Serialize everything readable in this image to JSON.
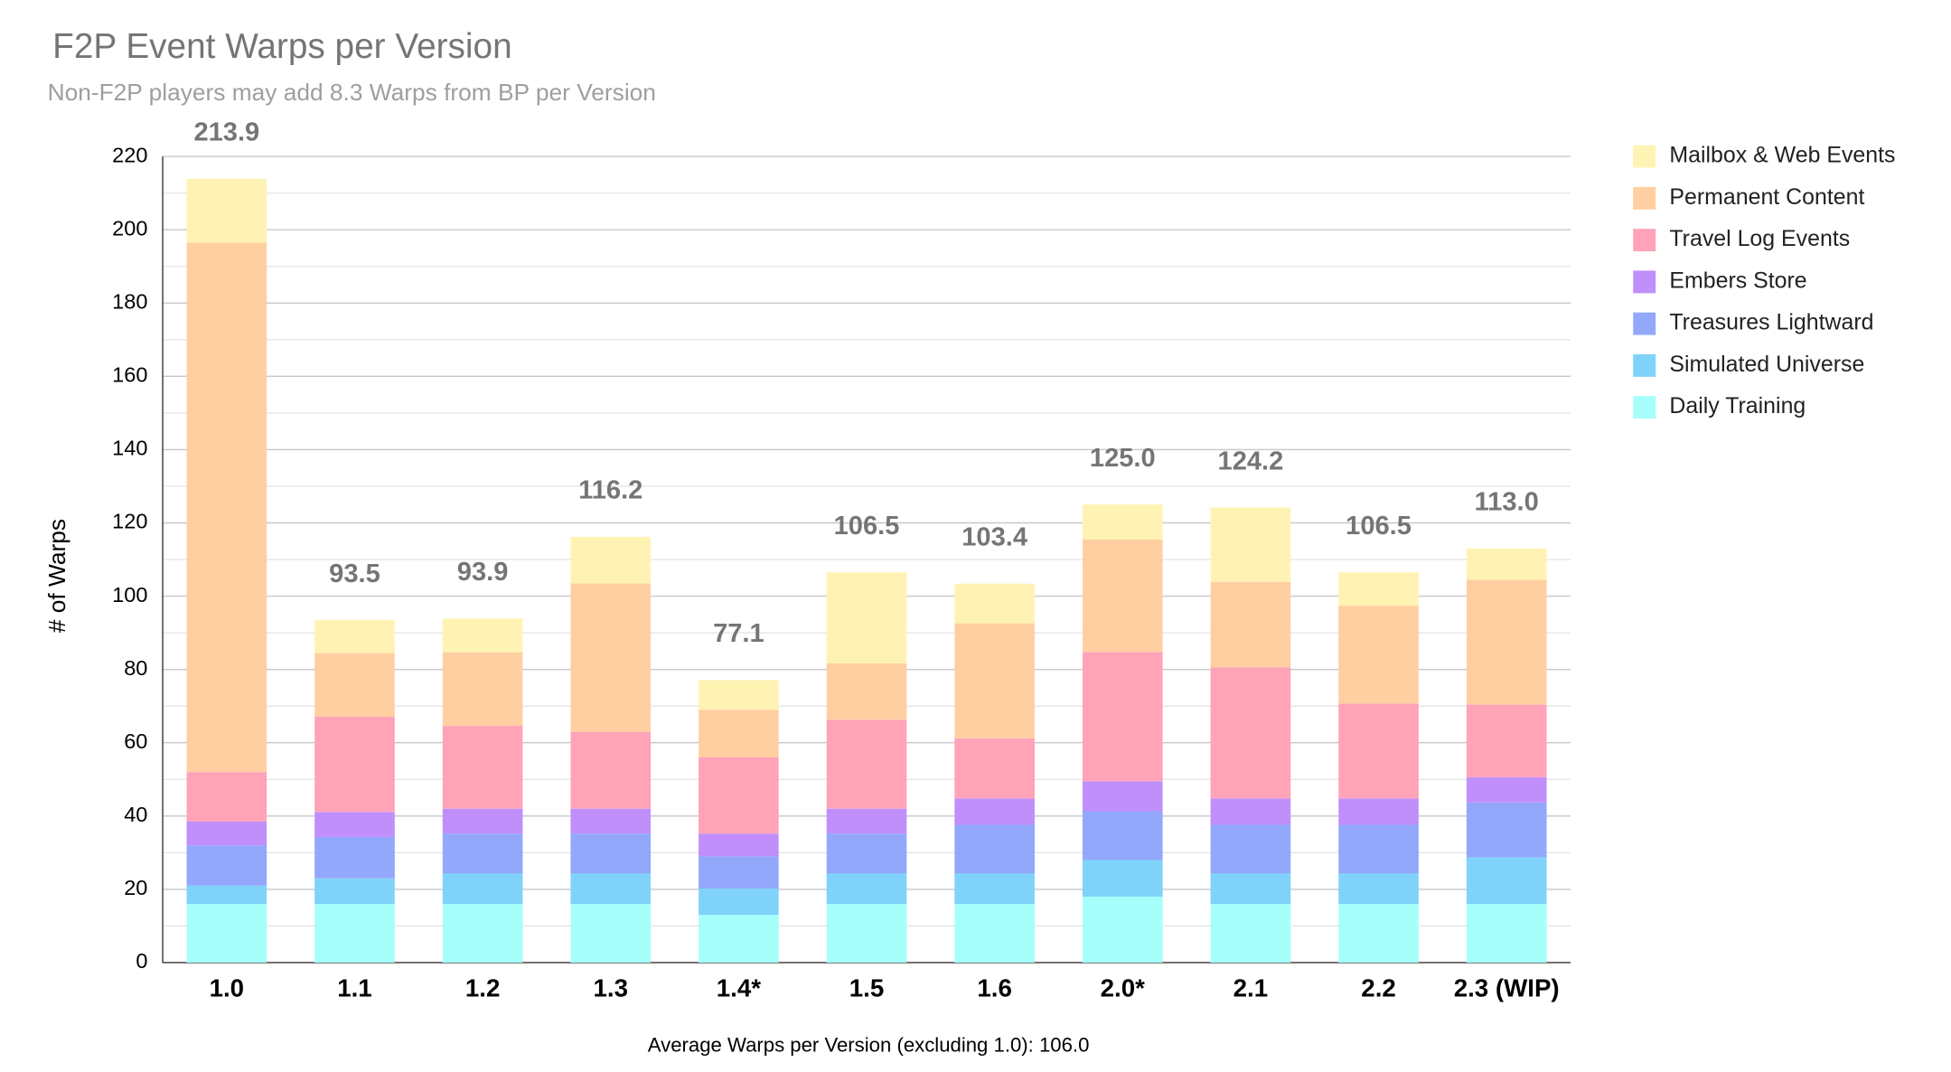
{
  "chart_data": {
    "type": "stacked_bar",
    "title": "F2P Event Warps per Version",
    "subtitle": "Non-F2P players may add 8.3 Warps from BP per Version",
    "y_label": "# of Warps",
    "footnote": "Average Warps per Version (excluding 1.0): 106.0",
    "categories": [
      "1.0",
      "1.1",
      "1.2",
      "1.3",
      "1.4*",
      "1.5",
      "1.6",
      "2.0*",
      "2.1",
      "2.2",
      "2.3 (WIP)"
    ],
    "series": [
      {
        "name": "Daily Training",
        "color": "#a6fffb",
        "values": [
          16,
          16,
          16,
          16,
          13,
          16,
          16,
          18,
          16,
          16,
          16
        ]
      },
      {
        "name": "Simulated Universe",
        "color": "#7fd3fb",
        "values": [
          5,
          7,
          8.3,
          8.3,
          7.2,
          8.3,
          8.3,
          10,
          8.3,
          8.3,
          12.7
        ]
      },
      {
        "name": "Treasures Lightward",
        "color": "#93a8fb",
        "values": [
          11,
          11.3,
          10.9,
          10.9,
          8.8,
          10.9,
          13.3,
          13.3,
          13.3,
          13.3,
          15
        ]
      },
      {
        "name": "Embers Store",
        "color": "#c08ffb",
        "values": [
          6.5,
          6.8,
          6.8,
          6.8,
          6.2,
          6.8,
          7.2,
          8.2,
          7.2,
          7.2,
          6.9
        ]
      },
      {
        "name": "Travel Log Events",
        "color": "#ffa3b8",
        "values": [
          13.5,
          26,
          22.6,
          20.9,
          20.8,
          24.3,
          16.4,
          35.2,
          35.8,
          25.9,
          19.8
        ]
      },
      {
        "name": "Permanent Content",
        "color": "#ffcfa1",
        "values": [
          144.5,
          17.4,
          20.1,
          40.6,
          13,
          15.4,
          31.4,
          30.8,
          23.3,
          26.7,
          34.1
        ]
      },
      {
        "name": "Mailbox & Web Events",
        "color": "#fff3b3",
        "values": [
          17.4,
          9,
          9.2,
          12.7,
          8.1,
          24.8,
          10.8,
          9.5,
          20.3,
          9.1,
          8.5
        ]
      }
    ],
    "totals": {
      "values": [
        213.9,
        93.5,
        93.9,
        116.2,
        77.1,
        106.5,
        103.4,
        125,
        124.2,
        106.5,
        113
      ],
      "value_labels": [
        "213.9",
        "93.5",
        "93.9",
        "116.2",
        "77.1",
        "106.5",
        "103.4",
        "125.0",
        "124.2",
        "106.5",
        "113.0"
      ]
    },
    "ylim": [
      0,
      220
    ],
    "yticks": [
      0,
      20,
      40,
      60,
      80,
      100,
      120,
      140,
      160,
      180,
      200,
      220
    ],
    "grid": true,
    "minor_grid": true,
    "legend": "right"
  }
}
